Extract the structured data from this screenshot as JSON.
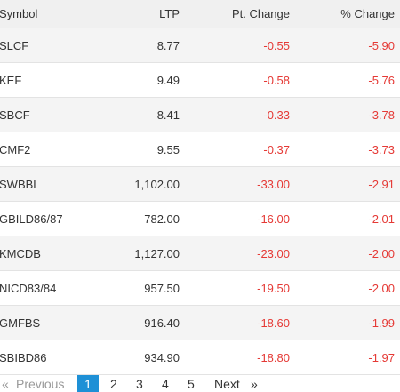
{
  "table": {
    "header": [
      "Symbol",
      "LTP",
      "Pt. Change",
      "% Change"
    ],
    "rows": [
      [
        "SLCF",
        "8.77",
        "-0.55",
        "-5.90"
      ],
      [
        "KEF",
        "9.49",
        "-0.58",
        "-5.76"
      ],
      [
        "SBCF",
        "8.41",
        "-0.33",
        "-3.78"
      ],
      [
        "CMF2",
        "9.55",
        "-0.37",
        "-3.73"
      ],
      [
        "SWBBL",
        "1,102.00",
        "-33.00",
        "-2.91"
      ],
      [
        "GBILD86/87",
        "782.00",
        "-16.00",
        "-2.01"
      ],
      [
        "KMCDB",
        "1,127.00",
        "-23.00",
        "-2.00"
      ],
      [
        "NICD83/84",
        "957.50",
        "-19.50",
        "-2.00"
      ],
      [
        "GMFBS",
        "916.40",
        "-18.60",
        "-1.99"
      ],
      [
        "SBIBD86",
        "934.90",
        "-18.80",
        "-1.97"
      ]
    ]
  },
  "pagination": {
    "first": "«",
    "previous": "Previous",
    "pages": [
      "1",
      "2",
      "3",
      "4",
      "5"
    ],
    "next": "Next",
    "last": "»"
  }
}
